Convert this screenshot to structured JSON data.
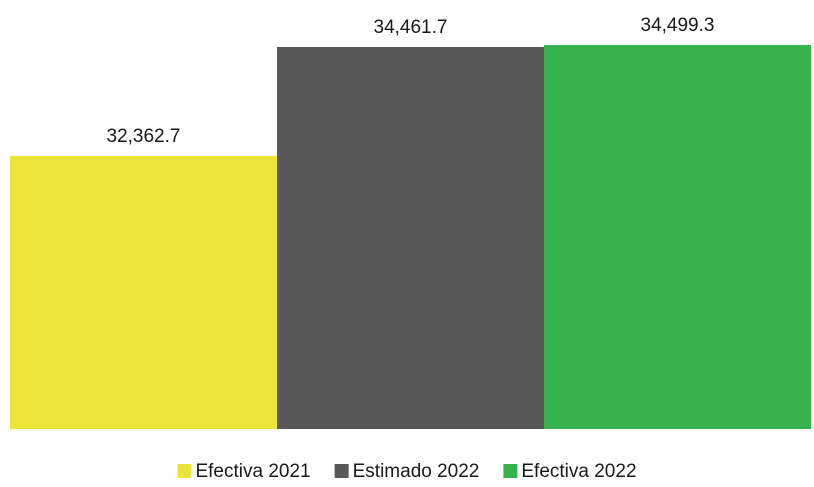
{
  "chart_data": {
    "type": "bar",
    "title": "",
    "xlabel": "",
    "ylabel": "",
    "categories": [
      "Efectiva 2021",
      "Estimado 2022",
      "Efectiva 2022"
    ],
    "values": [
      32362.7,
      34461.7,
      34499.3
    ],
    "value_labels": [
      "32,362.7",
      "34,461.7",
      "34,499.3"
    ],
    "colors": [
      "#ebe43a",
      "#595959",
      "#36b34c"
    ],
    "ylim": [
      27100,
      34500
    ],
    "grid": false,
    "legend": {
      "position": "bottom",
      "entries": [
        "Efectiva 2021",
        "Estimado 2022",
        "Efectiva 2022"
      ]
    }
  }
}
